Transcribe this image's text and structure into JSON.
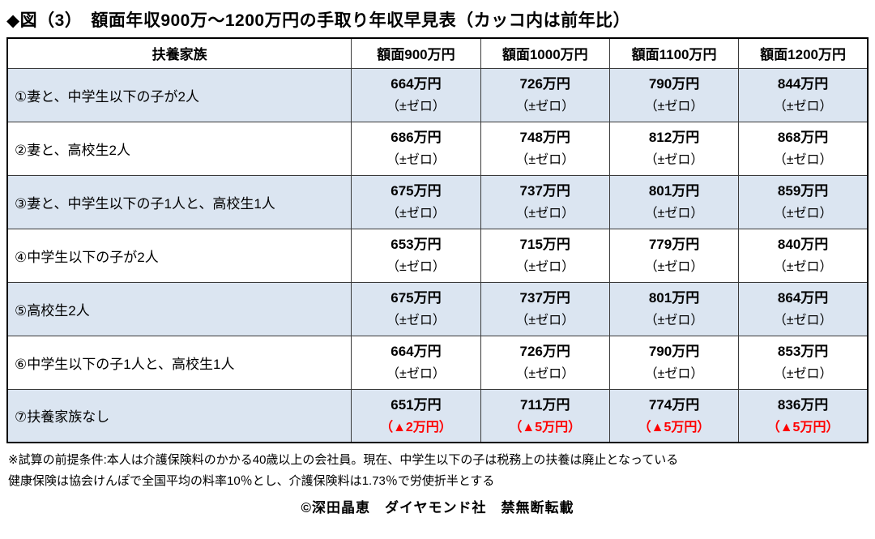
{
  "title": "◆図（3）　額面年収900万～1200万円の手取り年収早見表（カッコ内は前年比）",
  "table": {
    "columns": [
      "扶養家族",
      "額面900万円",
      "額面1000万円",
      "額面1100万円",
      "額面1200万円"
    ],
    "rows": [
      {
        "label": "①妻と、中学生以下の子が2人",
        "values": [
          "664万円",
          "726万円",
          "790万円",
          "844万円"
        ],
        "deltas": [
          "（±ゼロ）",
          "（±ゼロ）",
          "（±ゼロ）",
          "（±ゼロ）"
        ]
      },
      {
        "label": "②妻と、高校生2人",
        "values": [
          "686万円",
          "748万円",
          "812万円",
          "868万円"
        ],
        "deltas": [
          "（±ゼロ）",
          "（±ゼロ）",
          "（±ゼロ）",
          "（±ゼロ）"
        ]
      },
      {
        "label": "③妻と、中学生以下の子1人と、高校生1人",
        "values": [
          "675万円",
          "737万円",
          "801万円",
          "859万円"
        ],
        "deltas": [
          "（±ゼロ）",
          "（±ゼロ）",
          "（±ゼロ）",
          "（±ゼロ）"
        ]
      },
      {
        "label": "④中学生以下の子が2人",
        "values": [
          "653万円",
          "715万円",
          "779万円",
          "840万円"
        ],
        "deltas": [
          "（±ゼロ）",
          "（±ゼロ）",
          "（±ゼロ）",
          "（±ゼロ）"
        ]
      },
      {
        "label": "⑤高校生2人",
        "values": [
          "675万円",
          "737万円",
          "801万円",
          "864万円"
        ],
        "deltas": [
          "（±ゼロ）",
          "（±ゼロ）",
          "（±ゼロ）",
          "（±ゼロ）"
        ]
      },
      {
        "label": "⑥中学生以下の子1人と、高校生1人",
        "values": [
          "664万円",
          "726万円",
          "790万円",
          "853万円"
        ],
        "deltas": [
          "（±ゼロ）",
          "（±ゼロ）",
          "（±ゼロ）",
          "（±ゼロ）"
        ]
      },
      {
        "label": "⑦扶養家族なし",
        "values": [
          "651万円",
          "711万円",
          "774万円",
          "836万円"
        ],
        "deltas": [
          "（▲2万円）",
          "（▲5万円）",
          "（▲5万円）",
          "（▲5万円）"
        ]
      }
    ]
  },
  "notes": {
    "line1": "※試算の前提条件:本人は介護保険料のかかる40歳以上の会社員。現在、中学生以下の子は税務上の扶養は廃止となっている",
    "line2": "健康保険は協会けんぽで全国平均の料率10％とし、介護保険料は1.73％で労使折半とする"
  },
  "copyright": "©深田晶恵　ダイヤモンド社　禁無断転載",
  "colors": {
    "row_alt_background": "#dbe5f1",
    "delta_negative_red": "#ff0000",
    "border_black": "#000000"
  },
  "chart_data": {
    "type": "table",
    "title": "額面年収900万～1200万円の手取り年収早見表（カッコ内は前年比）",
    "unit": "万円",
    "columns": [
      "額面900万円",
      "額面1000万円",
      "額面1100万円",
      "額面1200万円"
    ],
    "rows": [
      {
        "label": "①妻と、中学生以下の子が2人",
        "net_income": [
          664,
          726,
          790,
          844
        ],
        "yoy_change": [
          0,
          0,
          0,
          0
        ]
      },
      {
        "label": "②妻と、高校生2人",
        "net_income": [
          686,
          748,
          812,
          868
        ],
        "yoy_change": [
          0,
          0,
          0,
          0
        ]
      },
      {
        "label": "③妻と、中学生以下の子1人と、高校生1人",
        "net_income": [
          675,
          737,
          801,
          859
        ],
        "yoy_change": [
          0,
          0,
          0,
          0
        ]
      },
      {
        "label": "④中学生以下の子が2人",
        "net_income": [
          653,
          715,
          779,
          840
        ],
        "yoy_change": [
          0,
          0,
          0,
          0
        ]
      },
      {
        "label": "⑤高校生2人",
        "net_income": [
          675,
          737,
          801,
          864
        ],
        "yoy_change": [
          0,
          0,
          0,
          0
        ]
      },
      {
        "label": "⑥中学生以下の子1人と、高校生1人",
        "net_income": [
          664,
          726,
          790,
          853
        ],
        "yoy_change": [
          0,
          0,
          0,
          0
        ]
      },
      {
        "label": "⑦扶養家族なし",
        "net_income": [
          651,
          711,
          774,
          836
        ],
        "yoy_change": [
          -2,
          -5,
          -5,
          -5
        ]
      }
    ]
  }
}
